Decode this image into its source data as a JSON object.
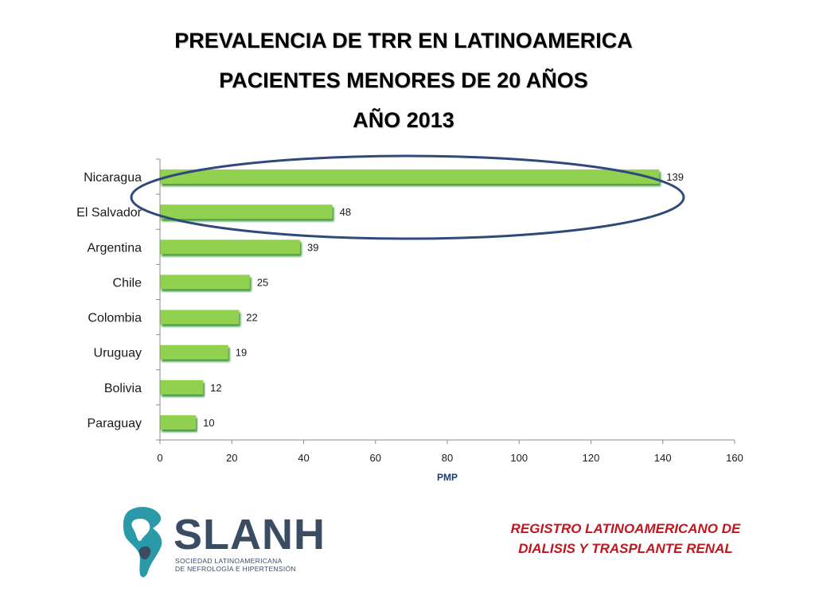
{
  "title": {
    "line1": "PREVALENCIA DE TRR EN LATINOAMERICA",
    "line2": "PACIENTES MENORES DE 20 AÑOS",
    "line3": "AÑO 2013"
  },
  "chart_data": {
    "type": "bar",
    "orientation": "horizontal",
    "categories": [
      "Nicaragua",
      "El Salvador",
      "Argentina",
      "Chile",
      "Colombia",
      "Uruguay",
      "Bolivia",
      "Paraguay"
    ],
    "values": [
      139,
      48,
      39,
      25,
      22,
      19,
      12,
      10
    ],
    "xlabel": "PMP",
    "ylabel": "",
    "xlim": [
      0,
      160
    ],
    "xticks": [
      0,
      20,
      40,
      60,
      80,
      100,
      120,
      140,
      160
    ],
    "bar_color": "#92d050",
    "shadow_color": "#2e8b2e",
    "highlight": {
      "shape": "ellipse",
      "categories": [
        "Nicaragua",
        "El Salvador"
      ],
      "color": "#2f4a7a"
    },
    "grid": false,
    "data_labels": true
  },
  "logo": {
    "name": "SLANH",
    "subtitle_line1": "SOCIEDAD LATINOAMERICANA",
    "subtitle_line2": "DE NEFROLOGÍA E HIPERTENSIÓN",
    "colors": {
      "text": "#3a4c63",
      "map": "#2a9aa8"
    }
  },
  "registry": {
    "line1": "REGISTRO LATINOAMERICANO DE",
    "line2": "DIALISIS Y TRASPLANTE RENAL",
    "color": "#c0161e"
  }
}
